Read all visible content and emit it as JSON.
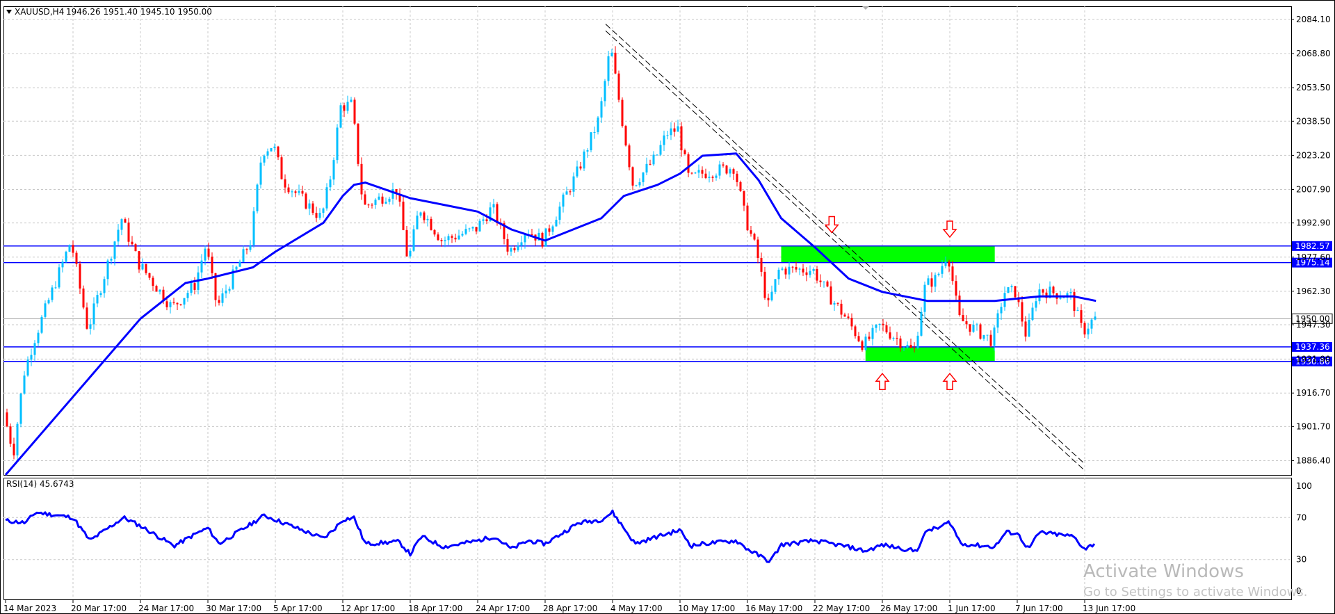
{
  "header": {
    "symbol": "XAUUSD,H4",
    "ohlc": "1946.26 1951.40 1945.10 1950.00"
  },
  "chart_data": [
    {
      "type": "candlestick",
      "instrument": "XAUUSD",
      "timeframe": "H4",
      "ylim": [
        1880,
        2090
      ],
      "y_ticks": [
        2084.1,
        2068.8,
        2053.5,
        2038.5,
        2023.2,
        2007.9,
        1992.9,
        1977.6,
        1962.3,
        1947.3,
        1931.9,
        1916.7,
        1901.7,
        1886.4
      ],
      "x_ticks": [
        "14 Mar 2023",
        "20 Mar 17:00",
        "24 Mar 17:00",
        "30 Mar 17:00",
        "5 Apr 17:00",
        "12 Apr 17:00",
        "18 Apr 17:00",
        "24 Apr 17:00",
        "28 Apr 17:00",
        "4 May 17:00",
        "10 May 17:00",
        "16 May 17:00",
        "22 May 17:00",
        "26 May 17:00",
        "1 Jun 17:00",
        "7 Jun 17:00",
        "13 Jun 17:00"
      ],
      "up_color": "#00bfff",
      "down_color": "#ff0000",
      "ma_color": "#0000ff",
      "current_price": 1950.0,
      "path_anchors": [
        [
          "14 Mar 2023",
          1908
        ],
        [
          "15 Mar 2023",
          1890
        ],
        [
          "16 Mar 2023",
          1925
        ],
        [
          "17 Mar 2023",
          1940
        ],
        [
          "20 Mar 17:00",
          1985
        ],
        [
          "21 Mar 17:00",
          1945
        ],
        [
          "23 Mar 17:00",
          1995
        ],
        [
          "24 Mar 17:00",
          1975
        ],
        [
          "27 Mar 17:00",
          1955
        ],
        [
          "29 Mar 17:00",
          1965
        ],
        [
          "30 Mar 17:00",
          1983
        ],
        [
          "31 Mar 17:00",
          1955
        ],
        [
          "3 Apr 17:00",
          1985
        ],
        [
          "4 Apr 17:00",
          2025
        ],
        [
          "5 Apr 17:00",
          2028
        ],
        [
          "6 Apr 17:00",
          2012
        ],
        [
          "10 Apr 17:00",
          1995
        ],
        [
          "11 Apr 17:00",
          2015
        ],
        [
          "12 Apr 17:00",
          2045
        ],
        [
          "13 Apr 17:00",
          2046
        ],
        [
          "14 Apr 17:00",
          2000
        ],
        [
          "17 Apr 17:00",
          2008
        ],
        [
          "18 Apr 17:00",
          1975
        ],
        [
          "19 Apr 17:00",
          2000
        ],
        [
          "21 Apr 17:00",
          1985
        ],
        [
          "24 Apr 17:00",
          1990
        ],
        [
          "25 Apr 17:00",
          2000
        ],
        [
          "26 Apr 17:00",
          1980
        ],
        [
          "27 Apr 17:00",
          1990
        ],
        [
          "28 Apr 17:00",
          1985
        ],
        [
          "1 May 17:00",
          2015
        ],
        [
          "3 May 17:00",
          2040
        ],
        [
          "4 May 17:00",
          2072
        ],
        [
          "5 May 17:00",
          2040
        ],
        [
          "6 May 17:00",
          2010
        ],
        [
          "8 May 17:00",
          2022
        ],
        [
          "9 May 17:00",
          2033
        ],
        [
          "10 May 17:00",
          2035
        ],
        [
          "11 May 17:00",
          2012
        ],
        [
          "12 May 17:00",
          2015
        ],
        [
          "15 May 17:00",
          2018
        ],
        [
          "16 May 17:00",
          1995
        ],
        [
          "17 May 17:00",
          1980
        ],
        [
          "18 May 17:00",
          1955
        ],
        [
          "19 May 17:00",
          1972
        ],
        [
          "22 May 17:00",
          1972
        ],
        [
          "23 May 17:00",
          1960
        ],
        [
          "24 May 17:00",
          1950
        ],
        [
          "25 May 17:00",
          1938
        ],
        [
          "26 May 17:00",
          1947
        ],
        [
          "29 May 17:00",
          1935
        ],
        [
          "30 May 17:00",
          1965
        ],
        [
          "31 May 17:00",
          1968
        ],
        [
          "1 Jun 17:00",
          1980
        ],
        [
          "2 Jun 17:00",
          1950
        ],
        [
          "5 Jun 17:00",
          1940
        ],
        [
          "6 Jun 17:00",
          1962
        ],
        [
          "7 Jun 17:00",
          1962
        ],
        [
          "8 Jun 17:00",
          1942
        ],
        [
          "9 Jun 17:00",
          1963
        ],
        [
          "12 Jun 17:00",
          1960
        ],
        [
          "13 Jun 17:00",
          1944
        ],
        [
          "14 Jun 17:00",
          1950
        ]
      ],
      "moving_average": [
        [
          "14 Mar 2023",
          1880
        ],
        [
          "20 Mar 17:00",
          1915
        ],
        [
          "24 Mar 17:00",
          1950
        ],
        [
          "28 Mar 17:00",
          1966
        ],
        [
          "30 Mar 17:00",
          1968
        ],
        [
          "3 Apr 17:00",
          1973
        ],
        [
          "5 Apr 17:00",
          1980
        ],
        [
          "10 Apr 17:00",
          1993
        ],
        [
          "12 Apr 17:00",
          2005
        ],
        [
          "13 Apr 17:00",
          2010
        ],
        [
          "14 Apr 17:00",
          2011
        ],
        [
          "18 Apr 17:00",
          2004
        ],
        [
          "24 Apr 17:00",
          1998
        ],
        [
          "26 Apr 17:00",
          1990
        ],
        [
          "28 Apr 17:00",
          1985
        ],
        [
          "3 May 17:00",
          1995
        ],
        [
          "5 May 17:00",
          2005
        ],
        [
          "8 May 17:00",
          2010
        ],
        [
          "10 May 17:00",
          2015
        ],
        [
          "12 May 17:00",
          2023
        ],
        [
          "15 May 17:00",
          2024
        ],
        [
          "17 May 17:00",
          2012
        ],
        [
          "19 May 17:00",
          1995
        ],
        [
          "22 May 17:00",
          1982
        ],
        [
          "24 May 17:00",
          1968
        ],
        [
          "26 May 17:00",
          1962
        ],
        [
          "30 May 17:00",
          1958
        ],
        [
          "1 Jun 17:00",
          1958
        ],
        [
          "5 Jun 17:00",
          1958
        ],
        [
          "7 Jun 17:00",
          1959
        ],
        [
          "9 Jun 17:00",
          1960
        ],
        [
          "12 Jun 17:00",
          1960
        ],
        [
          "14 Jun 17:00",
          1958
        ]
      ],
      "horizontal_levels": [
        {
          "label": "1982.57",
          "value": 1982.57,
          "color": "#0000ff"
        },
        {
          "label": "1975.14",
          "value": 1975.14,
          "color": "#0000ff"
        },
        {
          "label": "1937.36",
          "value": 1937.36,
          "color": "#0000ff"
        },
        {
          "label": "1930.86",
          "value": 1930.86,
          "color": "#0000ff"
        }
      ],
      "zones": [
        {
          "from": "19 May 17:00",
          "to": "5 Jun 17:00",
          "low": 1975.14,
          "high": 1982.57,
          "color": "#00ff00"
        },
        {
          "from": "25 May 17:00",
          "to": "5 Jun 17:00",
          "low": 1930.86,
          "high": 1937.36,
          "color": "#00ff00"
        }
      ],
      "trendlines": [
        {
          "from": [
            "4 May 17:00",
            2082
          ],
          "to": [
            "13 Jun 17:00",
            1885
          ]
        },
        {
          "from": [
            "4 May 17:00",
            2079
          ],
          "to": [
            "13 Jun 17:00",
            1882
          ]
        }
      ],
      "arrows": [
        {
          "at": "23 May 17:00",
          "price": 1992,
          "direction": "down",
          "color": "#ff0000"
        },
        {
          "at": "1 Jun 17:00",
          "price": 1990,
          "direction": "down",
          "color": "#ff0000"
        },
        {
          "at": "26 May 17:00",
          "price": 1922,
          "direction": "up",
          "color": "#ff0000"
        },
        {
          "at": "1 Jun 17:00",
          "price": 1922,
          "direction": "up",
          "color": "#ff0000"
        }
      ]
    },
    {
      "type": "line",
      "name": "RSI(14)",
      "label": "RSI(14) 45.6743",
      "ylim": [
        0,
        100
      ],
      "y_ticks": [
        100,
        70,
        30,
        0
      ],
      "color": "#0000ff",
      "anchors": [
        [
          "14 Mar 2023",
          67
        ],
        [
          "16 Mar 2023",
          65
        ],
        [
          "17 Mar 2023",
          75
        ],
        [
          "20 Mar 17:00",
          70
        ],
        [
          "21 Mar 17:00",
          48
        ],
        [
          "23 Mar 17:00",
          70
        ],
        [
          "24 Mar 17:00",
          62
        ],
        [
          "27 Mar 17:00",
          43
        ],
        [
          "29 Mar 17:00",
          55
        ],
        [
          "30 Mar 17:00",
          60
        ],
        [
          "31 Mar 17:00",
          45
        ],
        [
          "3 Apr 17:00",
          65
        ],
        [
          "4 Apr 17:00",
          72
        ],
        [
          "5 Apr 17:00",
          68
        ],
        [
          "10 Apr 17:00",
          50
        ],
        [
          "11 Apr 17:00",
          58
        ],
        [
          "12 Apr 17:00",
          68
        ],
        [
          "13 Apr 17:00",
          70
        ],
        [
          "14 Apr 17:00",
          45
        ],
        [
          "17 Apr 17:00",
          47
        ],
        [
          "18 Apr 17:00",
          35
        ],
        [
          "19 Apr 17:00",
          52
        ],
        [
          "21 Apr 17:00",
          42
        ],
        [
          "24 Apr 17:00",
          48
        ],
        [
          "25 Apr 17:00",
          52
        ],
        [
          "26 Apr 17:00",
          40
        ],
        [
          "27 Apr 17:00",
          48
        ],
        [
          "28 Apr 17:00",
          45
        ],
        [
          "1 May 17:00",
          65
        ],
        [
          "3 May 17:00",
          68
        ],
        [
          "4 May 17:00",
          75
        ],
        [
          "5 May 17:00",
          60
        ],
        [
          "6 May 17:00",
          45
        ],
        [
          "8 May 17:00",
          52
        ],
        [
          "10 May 17:00",
          58
        ],
        [
          "11 May 17:00",
          43
        ],
        [
          "12 May 17:00",
          45
        ],
        [
          "15 May 17:00",
          48
        ],
        [
          "16 May 17:00",
          40
        ],
        [
          "17 May 17:00",
          34
        ],
        [
          "18 May 17:00",
          28
        ],
        [
          "19 May 17:00",
          44
        ],
        [
          "22 May 17:00",
          48
        ],
        [
          "23 May 17:00",
          45
        ],
        [
          "24 May 17:00",
          42
        ],
        [
          "25 May 17:00",
          38
        ],
        [
          "26 May 17:00",
          44
        ],
        [
          "29 May 17:00",
          38
        ],
        [
          "30 May 17:00",
          58
        ],
        [
          "31 May 17:00",
          60
        ],
        [
          "1 Jun 17:00",
          66
        ],
        [
          "2 Jun 17:00",
          45
        ],
        [
          "5 Jun 17:00",
          42
        ],
        [
          "6 Jun 17:00",
          56
        ],
        [
          "7 Jun 17:00",
          55
        ],
        [
          "8 Jun 17:00",
          40
        ],
        [
          "9 Jun 17:00",
          56
        ],
        [
          "12 Jun 17:00",
          52
        ],
        [
          "13 Jun 17:00",
          40
        ],
        [
          "14 Jun 17:00",
          46
        ]
      ]
    }
  ],
  "watermark": {
    "line1": "Activate Windows",
    "line2": "Go to Settings to activate Windows."
  }
}
